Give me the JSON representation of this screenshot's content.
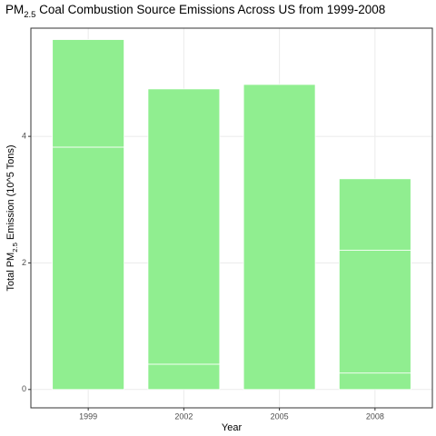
{
  "chart_data": {
    "type": "stacked-bar",
    "title": {
      "text": "PM",
      "subscript": "2.5",
      "rest": " Coal Combustion Source Emissions Across US from 1999-2008"
    },
    "x_label": "Year",
    "y_label": {
      "text": "Total PM",
      "subscript": "2.5",
      "rest": " Emission (10^5 Tons)"
    },
    "categories": [
      "1999",
      "2002",
      "2005",
      "2008"
    ],
    "color": "#90ee90",
    "series": [
      {
        "values": [
          3.83,
          0.4,
          4.82,
          0.26
        ]
      },
      {
        "values": [
          1.7,
          4.35,
          null,
          1.94
        ]
      },
      {
        "values": [
          null,
          null,
          null,
          1.13
        ]
      }
    ],
    "ylim": [
      -0.29,
      5.71
    ],
    "yticks": [
      0,
      2,
      4
    ],
    "grid": true
  }
}
